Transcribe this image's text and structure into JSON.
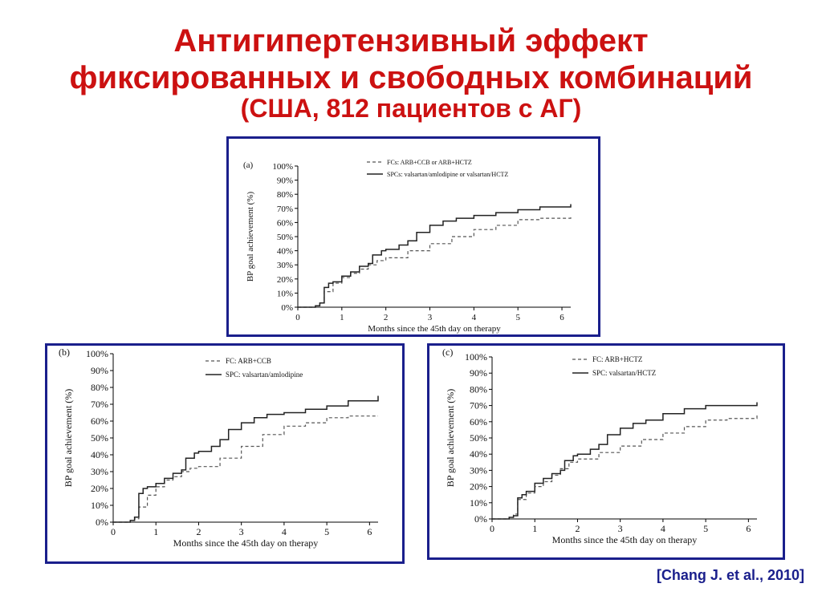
{
  "header": {
    "title_line1": "Антигипертензивный эффект",
    "title_line2": "фиксированных и свободных комбинаций",
    "title_line3": "(США, 812 пациентов с АГ)"
  },
  "citation": "[Chang J. et al., 2010]",
  "colors": {
    "title": "#cc1111",
    "frame": "#1a1f8c",
    "solid_line": "#222222",
    "dashed_line": "#555555"
  },
  "chart_data": [
    {
      "type": "line",
      "panel_label": "(a)",
      "xlabel": "Months since the 45th day on therapy",
      "ylabel": "BP goal achievement (%)",
      "xlim": [
        0,
        6.2
      ],
      "ylim": [
        0,
        100
      ],
      "x_ticks": [
        "0",
        "1",
        "2",
        "3",
        "4",
        "5",
        "6"
      ],
      "y_ticks": [
        "0%",
        "10%",
        "20%",
        "30%",
        "40%",
        "50%",
        "60%",
        "70%",
        "80%",
        "90%",
        "100%"
      ],
      "legend_position": "top-right",
      "series": [
        {
          "name": "FCs: ARB+CCB or ARB+HCTZ",
          "style": "dashed",
          "x": [
            0,
            0.4,
            0.5,
            0.6,
            0.8,
            1.0,
            1.2,
            1.4,
            1.6,
            1.8,
            2.0,
            2.5,
            3.0,
            3.5,
            4.0,
            4.5,
            5.0,
            5.5,
            6.2
          ],
          "y": [
            0,
            1,
            3,
            11,
            17,
            21,
            24,
            27,
            30,
            33,
            35,
            40,
            45,
            50,
            55,
            58,
            62,
            63,
            65
          ]
        },
        {
          "name": "SPCs: valsartan/amlodipine or valsartan/HCTZ",
          "style": "solid",
          "x": [
            0,
            0.4,
            0.5,
            0.6,
            0.7,
            0.8,
            1.0,
            1.2,
            1.4,
            1.6,
            1.7,
            1.9,
            2.0,
            2.3,
            2.5,
            2.7,
            3.0,
            3.3,
            3.6,
            4.0,
            4.5,
            5.0,
            5.5,
            6.2
          ],
          "y": [
            0,
            1,
            3,
            14,
            17,
            18,
            22,
            25,
            29,
            31,
            37,
            40,
            41,
            44,
            47,
            53,
            58,
            61,
            63,
            65,
            67,
            69,
            71,
            73
          ]
        }
      ]
    },
    {
      "type": "line",
      "panel_label": "(b)",
      "xlabel": "Months since the 45th day on therapy",
      "ylabel": "BP goal achievement (%)",
      "xlim": [
        0,
        6.2
      ],
      "ylim": [
        0,
        100
      ],
      "x_ticks": [
        "0",
        "1",
        "2",
        "3",
        "4",
        "5",
        "6"
      ],
      "y_ticks": [
        "0%",
        "10%",
        "20%",
        "30%",
        "40%",
        "50%",
        "60%",
        "70%",
        "80%",
        "90%",
        "100%"
      ],
      "legend_position": "top-right",
      "series": [
        {
          "name": "FC: ARB+CCB",
          "style": "dashed",
          "x": [
            0,
            0.4,
            0.5,
            0.6,
            0.8,
            1.0,
            1.2,
            1.4,
            1.6,
            1.8,
            2.0,
            2.5,
            3.0,
            3.5,
            4.0,
            4.5,
            5.0,
            5.5,
            6.2
          ],
          "y": [
            0,
            1,
            2,
            9,
            16,
            21,
            25,
            27,
            30,
            32,
            33,
            38,
            45,
            52,
            57,
            59,
            62,
            63,
            63
          ]
        },
        {
          "name": "SPC: valsartan/amlodipine",
          "style": "solid",
          "x": [
            0,
            0.4,
            0.5,
            0.6,
            0.7,
            0.8,
            1.0,
            1.2,
            1.4,
            1.6,
            1.7,
            1.9,
            2.0,
            2.3,
            2.5,
            2.7,
            3.0,
            3.3,
            3.6,
            4.0,
            4.5,
            5.0,
            5.5,
            6.2
          ],
          "y": [
            0,
            1,
            3,
            17,
            20,
            21,
            23,
            26,
            29,
            31,
            38,
            41,
            42,
            45,
            49,
            55,
            59,
            62,
            64,
            65,
            67,
            69,
            72,
            75
          ]
        }
      ]
    },
    {
      "type": "line",
      "panel_label": "(c)",
      "xlabel": "Months since the 45th day on therapy",
      "ylabel": "BP goal achievement (%)",
      "xlim": [
        0,
        6.2
      ],
      "ylim": [
        0,
        100
      ],
      "x_ticks": [
        "0",
        "1",
        "2",
        "3",
        "4",
        "5",
        "6"
      ],
      "y_ticks": [
        "0%",
        "10%",
        "20%",
        "30%",
        "40%",
        "50%",
        "60%",
        "70%",
        "80%",
        "90%",
        "100%"
      ],
      "legend_position": "top-right",
      "series": [
        {
          "name": "FC: ARB+HCTZ",
          "style": "dashed",
          "x": [
            0,
            0.4,
            0.5,
            0.6,
            0.8,
            1.0,
            1.2,
            1.4,
            1.6,
            1.8,
            2.0,
            2.5,
            3.0,
            3.5,
            4.0,
            4.5,
            5.0,
            5.5,
            6.2
          ],
          "y": [
            0,
            1,
            3,
            12,
            16,
            20,
            23,
            27,
            31,
            35,
            37,
            41,
            45,
            49,
            53,
            57,
            61,
            62,
            65
          ]
        },
        {
          "name": "SPC: valsartan/HCTZ",
          "style": "solid",
          "x": [
            0,
            0.4,
            0.5,
            0.6,
            0.7,
            0.8,
            1.0,
            1.2,
            1.4,
            1.6,
            1.7,
            1.9,
            2.0,
            2.3,
            2.5,
            2.7,
            3.0,
            3.3,
            3.6,
            4.0,
            4.5,
            5.0,
            5.5,
            6.2
          ],
          "y": [
            0,
            1,
            2,
            13,
            15,
            17,
            22,
            25,
            28,
            30,
            36,
            39,
            40,
            43,
            46,
            52,
            56,
            59,
            61,
            65,
            68,
            70,
            70,
            72
          ]
        }
      ]
    }
  ]
}
